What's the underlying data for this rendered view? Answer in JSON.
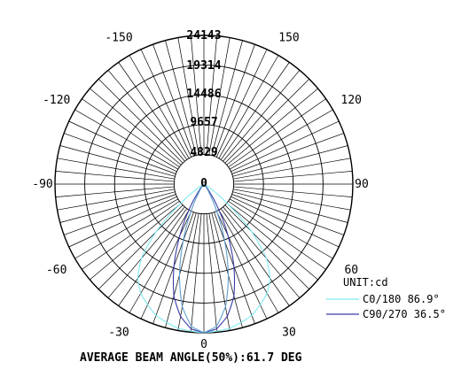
{
  "chart_data": {
    "type": "polar",
    "title": "",
    "ring_labels": [
      "24143",
      "19314",
      "14486",
      "9657",
      "4829",
      "0"
    ],
    "ring_values": [
      24143,
      19314,
      14486,
      9657,
      4829
    ],
    "r_max": 24143,
    "angle_labels": [
      {
        "angle": 0,
        "text": "0"
      },
      {
        "angle": 30,
        "text": "30"
      },
      {
        "angle": -30,
        "text": "-30"
      },
      {
        "angle": 60,
        "text": "60"
      },
      {
        "angle": -60,
        "text": "-60"
      },
      {
        "angle": 90,
        "text": "90"
      },
      {
        "angle": -90,
        "text": "-90"
      },
      {
        "angle": 120,
        "text": "120"
      },
      {
        "angle": -120,
        "text": "-120"
      },
      {
        "angle": 150,
        "text": "150"
      },
      {
        "angle": -150,
        "text": "-150"
      }
    ],
    "spoke_step_deg": 5,
    "grid": true,
    "legend": {
      "unit": "UNIT:cd",
      "entries": [
        {
          "label": "C0/180 86.9°",
          "color": "#7fe9ee"
        },
        {
          "label": "C90/270 36.5°",
          "color": "#3a3aa8"
        }
      ],
      "placement": "bottom-right"
    },
    "series": [
      {
        "name": "C0/180 86.9°",
        "color": "#7fe9ee",
        "points": [
          {
            "angle": 0,
            "cd": 24143
          },
          {
            "angle": 10,
            "cd": 23800
          },
          {
            "angle": 20,
            "cd": 22700
          },
          {
            "angle": 30,
            "cd": 20500
          },
          {
            "angle": 35,
            "cd": 18700
          },
          {
            "angle": 40,
            "cd": 15800
          },
          {
            "angle": 45,
            "cd": 11000
          },
          {
            "angle": 50,
            "cd": 5000
          },
          {
            "angle": 55,
            "cd": 1500
          },
          {
            "angle": 60,
            "cd": 300
          },
          {
            "angle": 90,
            "cd": 0
          }
        ]
      },
      {
        "name": "C90/270 36.5°",
        "color": "#3a3aa8",
        "points": [
          {
            "angle": 0,
            "cd": 24143
          },
          {
            "angle": 5,
            "cd": 23600
          },
          {
            "angle": 10,
            "cd": 21800
          },
          {
            "angle": 15,
            "cd": 18800
          },
          {
            "angle": 20,
            "cd": 14200
          },
          {
            "angle": 25,
            "cd": 9200
          },
          {
            "angle": 30,
            "cd": 4800
          },
          {
            "angle": 35,
            "cd": 1800
          },
          {
            "angle": 40,
            "cd": 500
          },
          {
            "angle": 50,
            "cd": 50
          },
          {
            "angle": 90,
            "cd": 0
          }
        ]
      },
      {
        "name": "",
        "color": "#5f9fcf",
        "points": [
          {
            "angle": 0,
            "cd": 24143
          },
          {
            "angle": 5,
            "cd": 23200
          },
          {
            "angle": 10,
            "cd": 20200
          },
          {
            "angle": 15,
            "cd": 15300
          },
          {
            "angle": 20,
            "cd": 9800
          },
          {
            "angle": 25,
            "cd": 5000
          },
          {
            "angle": 30,
            "cd": 1900
          },
          {
            "angle": 35,
            "cd": 600
          },
          {
            "angle": 45,
            "cd": 80
          },
          {
            "angle": 90,
            "cd": 0
          }
        ]
      }
    ],
    "footer": "AVERAGE BEAM ANGLE(50%):61.7 DEG"
  }
}
